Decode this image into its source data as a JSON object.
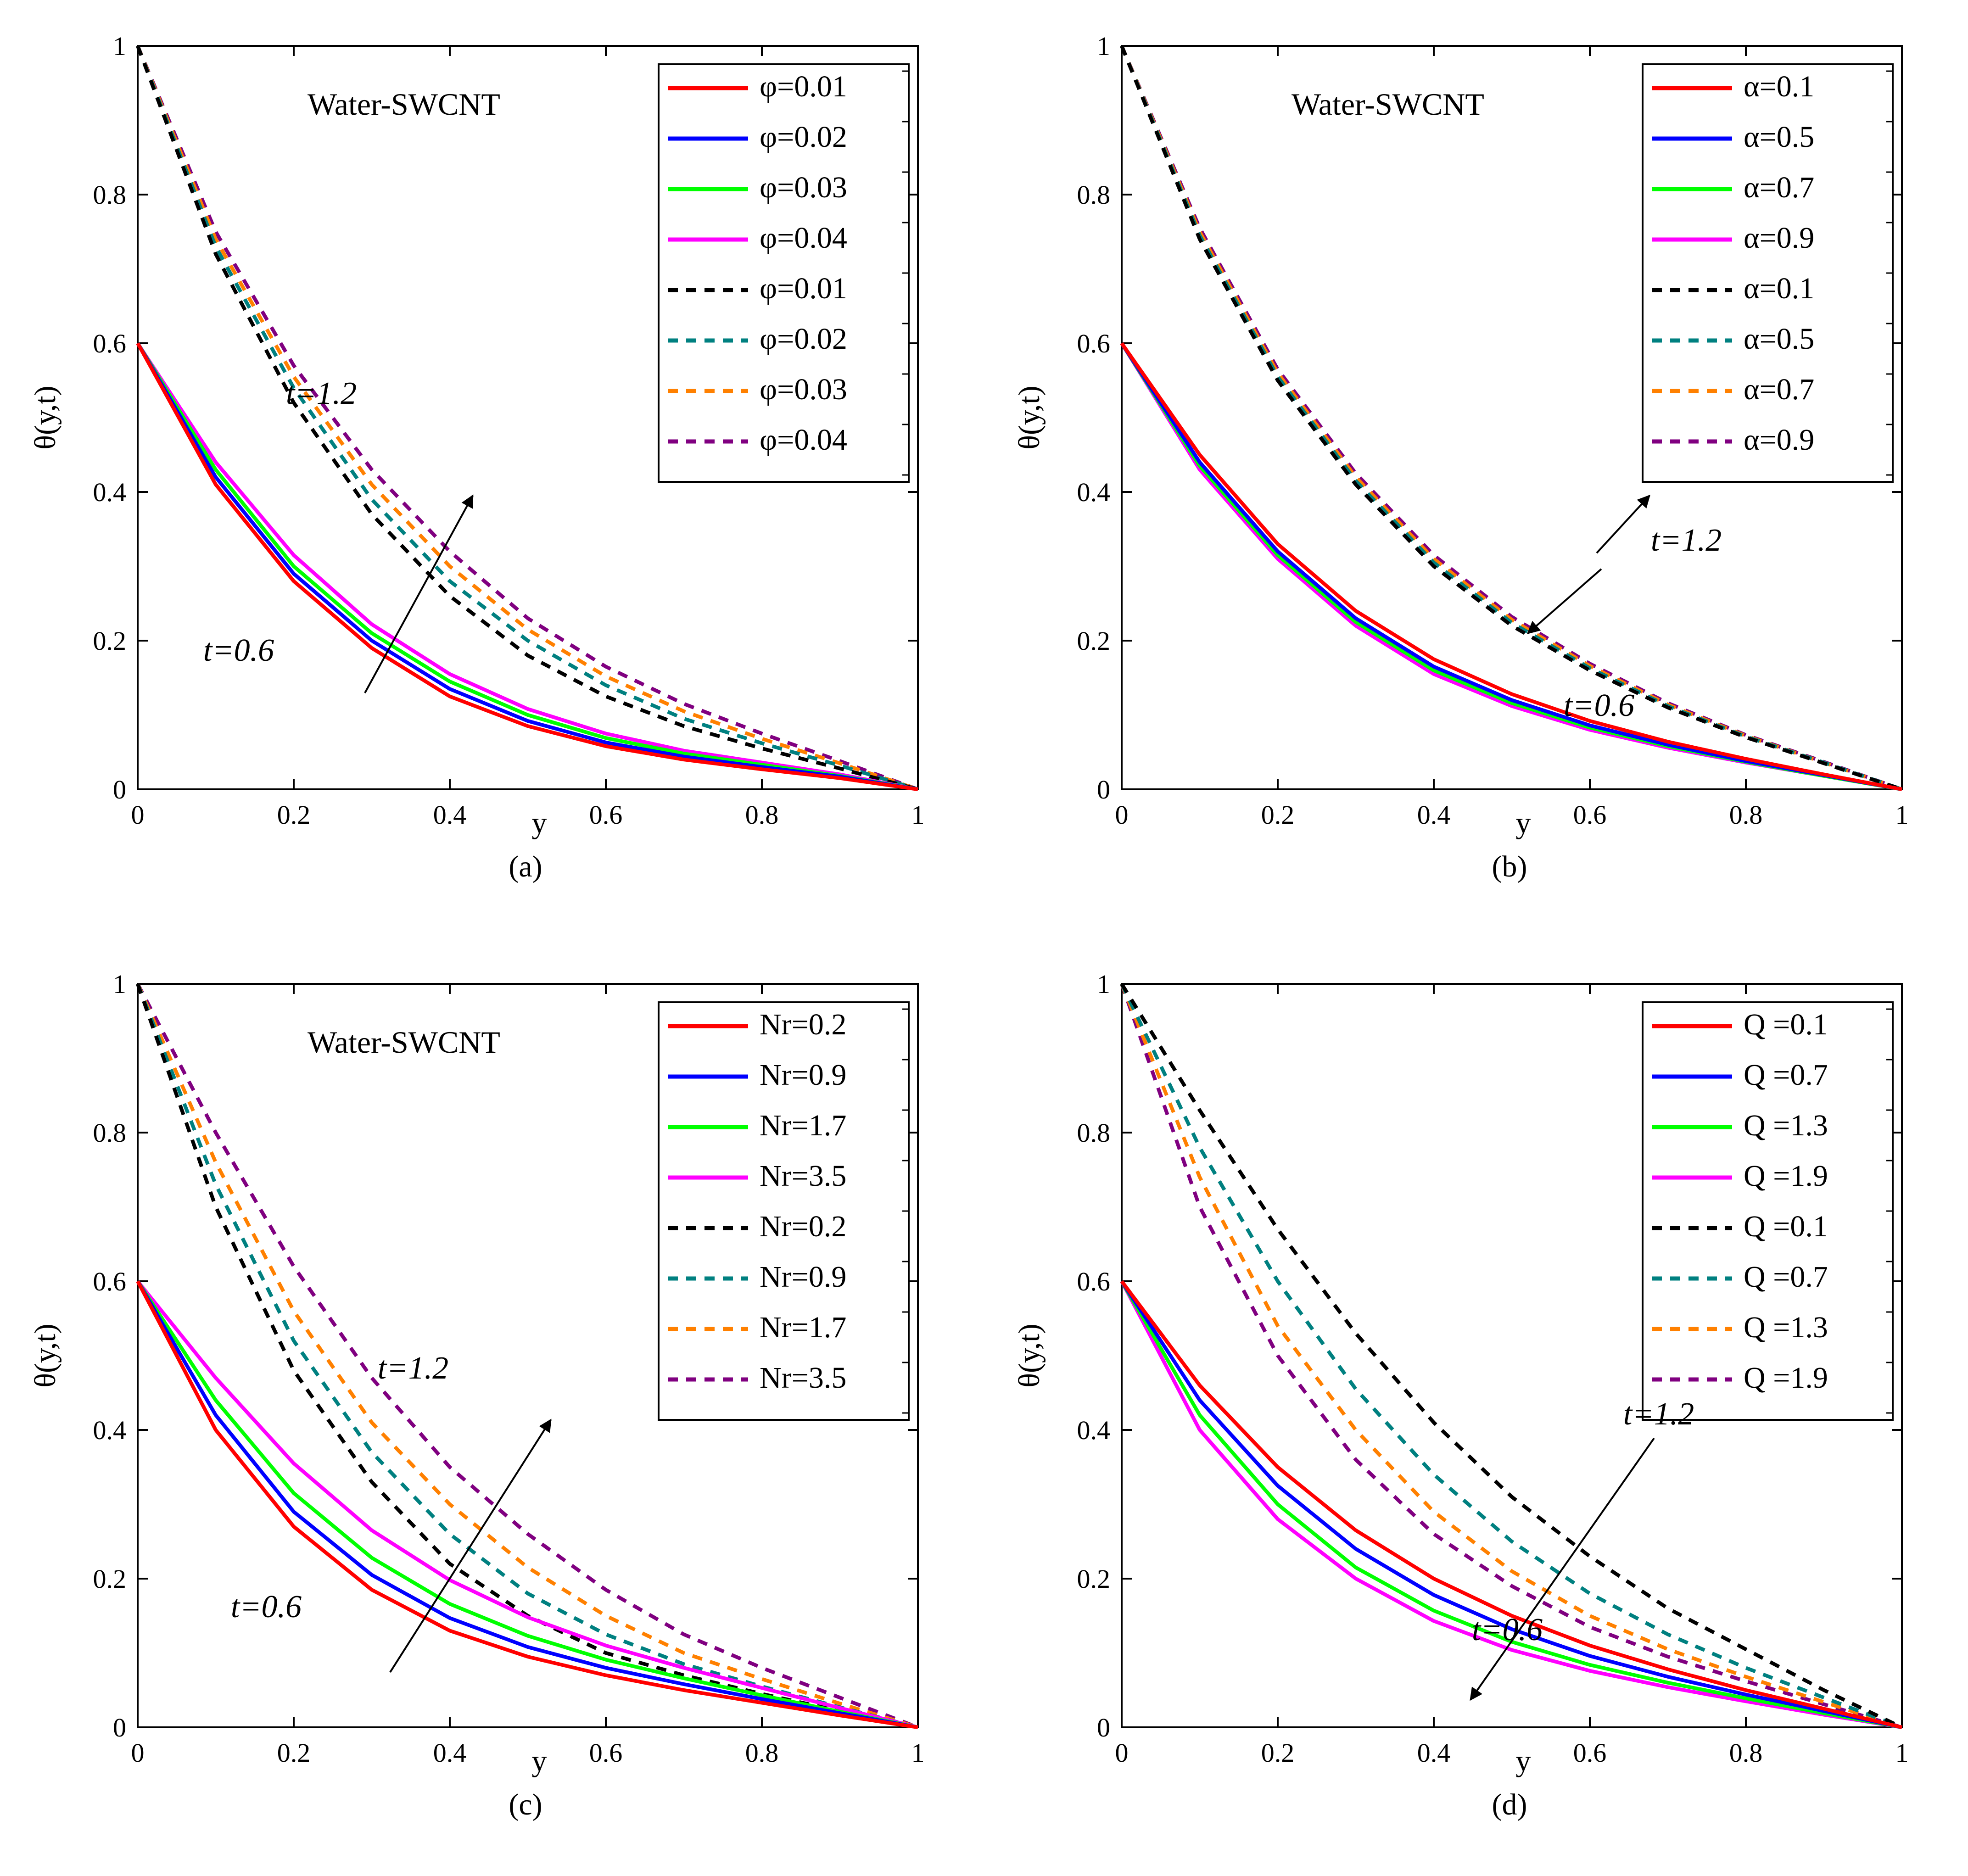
{
  "figure": {
    "panels": [
      "(a)",
      "(b)",
      "(c)",
      "(d)"
    ]
  },
  "chart_data": [
    {
      "type": "line",
      "panel_label": "(a)",
      "title": "Water-SWCNT",
      "xlabel": "y",
      "ylabel": "θ(y,t)",
      "xlim": [
        0,
        1
      ],
      "ylim": [
        0,
        1
      ],
      "xticks": [
        "0",
        "0.2",
        "0.4",
        "0.6",
        "0.8",
        "1"
      ],
      "yticks": [
        "0",
        "0.2",
        "0.4",
        "0.6",
        "0.8",
        "1"
      ],
      "legend_position": "top-right",
      "annotations": [
        "t=1.2",
        "t=0.6"
      ],
      "arrow": "up",
      "x": [
        0,
        0.1,
        0.2,
        0.3,
        0.4,
        0.5,
        0.6,
        0.7,
        0.8,
        0.9,
        1.0
      ],
      "series": [
        {
          "name": "φ=0.01",
          "style": "solid",
          "color": "#ff0000",
          "values": [
            0.6,
            0.41,
            0.28,
            0.19,
            0.125,
            0.085,
            0.058,
            0.04,
            0.027,
            0.015,
            0
          ]
        },
        {
          "name": "φ=0.02",
          "style": "solid",
          "color": "#0000ff",
          "values": [
            0.6,
            0.42,
            0.29,
            0.2,
            0.135,
            0.092,
            0.063,
            0.044,
            0.03,
            0.017,
            0
          ]
        },
        {
          "name": "φ=0.03",
          "style": "solid",
          "color": "#00ff00",
          "values": [
            0.6,
            0.43,
            0.3,
            0.21,
            0.145,
            0.1,
            0.069,
            0.048,
            0.033,
            0.018,
            0
          ]
        },
        {
          "name": "φ=0.04",
          "style": "solid",
          "color": "#ff00ff",
          "values": [
            0.6,
            0.44,
            0.315,
            0.222,
            0.155,
            0.108,
            0.075,
            0.052,
            0.036,
            0.02,
            0
          ]
        },
        {
          "name": "φ=0.01",
          "style": "dashed",
          "color": "#000000",
          "values": [
            1.0,
            0.72,
            0.52,
            0.37,
            0.26,
            0.18,
            0.125,
            0.085,
            0.055,
            0.028,
            0
          ]
        },
        {
          "name": "φ=0.02",
          "style": "dashed",
          "color": "#008080",
          "values": [
            1.0,
            0.73,
            0.54,
            0.39,
            0.28,
            0.2,
            0.14,
            0.095,
            0.062,
            0.032,
            0
          ]
        },
        {
          "name": "φ=0.03",
          "style": "dashed",
          "color": "#ff8000",
          "values": [
            1.0,
            0.74,
            0.555,
            0.41,
            0.3,
            0.215,
            0.152,
            0.105,
            0.068,
            0.035,
            0
          ]
        },
        {
          "name": "φ=0.04",
          "style": "dashed",
          "color": "#800080",
          "values": [
            1.0,
            0.75,
            0.57,
            0.43,
            0.32,
            0.23,
            0.165,
            0.115,
            0.075,
            0.038,
            0
          ]
        }
      ]
    },
    {
      "type": "line",
      "panel_label": "(b)",
      "title": "Water-SWCNT",
      "xlabel": "y",
      "ylabel": "θ(y,t)",
      "xlim": [
        0,
        1
      ],
      "ylim": [
        0,
        1
      ],
      "xticks": [
        "0",
        "0.2",
        "0.4",
        "0.6",
        "0.8",
        "1"
      ],
      "yticks": [
        "0",
        "0.2",
        "0.4",
        "0.6",
        "0.8",
        "1"
      ],
      "legend_position": "top-right",
      "annotations": [
        "t=1.2",
        "t=0.6"
      ],
      "arrow": "both",
      "x": [
        0,
        0.1,
        0.2,
        0.3,
        0.4,
        0.5,
        0.6,
        0.7,
        0.8,
        0.9,
        1.0
      ],
      "series": [
        {
          "name": "α=0.1",
          "style": "solid",
          "color": "#ff0000",
          "values": [
            0.6,
            0.45,
            0.33,
            0.24,
            0.175,
            0.128,
            0.092,
            0.064,
            0.041,
            0.02,
            0
          ]
        },
        {
          "name": "α=0.5",
          "style": "solid",
          "color": "#0000ff",
          "values": [
            0.6,
            0.44,
            0.32,
            0.23,
            0.165,
            0.12,
            0.086,
            0.06,
            0.038,
            0.019,
            0
          ]
        },
        {
          "name": "α=0.7",
          "style": "solid",
          "color": "#00ff00",
          "values": [
            0.6,
            0.435,
            0.315,
            0.225,
            0.16,
            0.116,
            0.083,
            0.058,
            0.037,
            0.018,
            0
          ]
        },
        {
          "name": "α=0.9",
          "style": "solid",
          "color": "#ff00ff",
          "values": [
            0.6,
            0.43,
            0.31,
            0.22,
            0.155,
            0.112,
            0.08,
            0.056,
            0.036,
            0.018,
            0
          ]
        },
        {
          "name": "α=0.1",
          "style": "dashed",
          "color": "#000000",
          "values": [
            1.0,
            0.74,
            0.55,
            0.41,
            0.3,
            0.22,
            0.16,
            0.11,
            0.07,
            0.035,
            0
          ]
        },
        {
          "name": "α=0.5",
          "style": "dashed",
          "color": "#008080",
          "values": [
            1.0,
            0.745,
            0.555,
            0.415,
            0.305,
            0.224,
            0.163,
            0.112,
            0.071,
            0.036,
            0
          ]
        },
        {
          "name": "α=0.7",
          "style": "dashed",
          "color": "#ff8000",
          "values": [
            1.0,
            0.75,
            0.56,
            0.42,
            0.31,
            0.228,
            0.166,
            0.114,
            0.072,
            0.036,
            0
          ]
        },
        {
          "name": "α=0.9",
          "style": "dashed",
          "color": "#800080",
          "values": [
            1.0,
            0.755,
            0.565,
            0.425,
            0.315,
            0.232,
            0.169,
            0.116,
            0.073,
            0.037,
            0
          ]
        }
      ]
    },
    {
      "type": "line",
      "panel_label": "(c)",
      "title": "Water-SWCNT",
      "xlabel": "y",
      "ylabel": "θ(y,t)",
      "xlim": [
        0,
        1
      ],
      "ylim": [
        0,
        1
      ],
      "xticks": [
        "0",
        "0.2",
        "0.4",
        "0.6",
        "0.8",
        "1"
      ],
      "yticks": [
        "0",
        "0.2",
        "0.4",
        "0.6",
        "0.8",
        "1"
      ],
      "legend_position": "top-right",
      "annotations": [
        "t=1.2",
        "t=0.6"
      ],
      "arrow": "up",
      "x": [
        0,
        0.1,
        0.2,
        0.3,
        0.4,
        0.5,
        0.6,
        0.7,
        0.8,
        0.9,
        1.0
      ],
      "series": [
        {
          "name": "Nr=0.2",
          "style": "solid",
          "color": "#ff0000",
          "values": [
            0.6,
            0.4,
            0.27,
            0.185,
            0.13,
            0.095,
            0.07,
            0.05,
            0.033,
            0.016,
            0
          ]
        },
        {
          "name": "Nr=0.9",
          "style": "solid",
          "color": "#0000ff",
          "values": [
            0.6,
            0.42,
            0.29,
            0.205,
            0.147,
            0.108,
            0.08,
            0.058,
            0.038,
            0.019,
            0
          ]
        },
        {
          "name": "Nr=1.7",
          "style": "solid",
          "color": "#00ff00",
          "values": [
            0.6,
            0.44,
            0.315,
            0.228,
            0.166,
            0.123,
            0.091,
            0.066,
            0.043,
            0.021,
            0
          ]
        },
        {
          "name": "Nr=3.5",
          "style": "solid",
          "color": "#ff00ff",
          "values": [
            0.6,
            0.47,
            0.355,
            0.265,
            0.198,
            0.148,
            0.11,
            0.08,
            0.053,
            0.026,
            0
          ]
        },
        {
          "name": "Nr=0.2",
          "style": "dashed",
          "color": "#000000",
          "values": [
            1.0,
            0.7,
            0.48,
            0.33,
            0.22,
            0.15,
            0.1,
            0.07,
            0.045,
            0.022,
            0
          ]
        },
        {
          "name": "Nr=0.9",
          "style": "dashed",
          "color": "#008080",
          "values": [
            1.0,
            0.73,
            0.52,
            0.37,
            0.26,
            0.18,
            0.125,
            0.085,
            0.055,
            0.027,
            0
          ]
        },
        {
          "name": "Nr=1.7",
          "style": "dashed",
          "color": "#ff8000",
          "values": [
            1.0,
            0.76,
            0.56,
            0.41,
            0.3,
            0.215,
            0.15,
            0.1,
            0.065,
            0.032,
            0
          ]
        },
        {
          "name": "Nr=3.5",
          "style": "dashed",
          "color": "#800080",
          "values": [
            1.0,
            0.8,
            0.62,
            0.47,
            0.35,
            0.26,
            0.185,
            0.125,
            0.08,
            0.04,
            0
          ]
        }
      ]
    },
    {
      "type": "line",
      "panel_label": "(d)",
      "title": "",
      "xlabel": "y",
      "ylabel": "θ(y,t)",
      "xlim": [
        0,
        1
      ],
      "ylim": [
        0,
        1
      ],
      "xticks": [
        "0",
        "0.2",
        "0.4",
        "0.6",
        "0.8",
        "1"
      ],
      "yticks": [
        "0",
        "0.2",
        "0.4",
        "0.6",
        "0.8",
        "1"
      ],
      "legend_position": "top-right",
      "annotations": [
        "t=1.2",
        "t=0.6"
      ],
      "arrow": "down",
      "x": [
        0,
        0.1,
        0.2,
        0.3,
        0.4,
        0.5,
        0.6,
        0.7,
        0.8,
        0.9,
        1.0
      ],
      "series": [
        {
          "name": "Q =0.1",
          "style": "solid",
          "color": "#ff0000",
          "values": [
            0.6,
            0.46,
            0.35,
            0.265,
            0.2,
            0.15,
            0.11,
            0.078,
            0.05,
            0.025,
            0
          ]
        },
        {
          "name": "Q =0.7",
          "style": "solid",
          "color": "#0000ff",
          "values": [
            0.6,
            0.44,
            0.325,
            0.24,
            0.178,
            0.132,
            0.096,
            0.068,
            0.044,
            0.022,
            0
          ]
        },
        {
          "name": "Q =1.3",
          "style": "solid",
          "color": "#00ff00",
          "values": [
            0.6,
            0.42,
            0.3,
            0.215,
            0.157,
            0.115,
            0.084,
            0.06,
            0.039,
            0.019,
            0
          ]
        },
        {
          "name": "Q =1.9",
          "style": "solid",
          "color": "#ff00ff",
          "values": [
            0.6,
            0.4,
            0.28,
            0.2,
            0.143,
            0.104,
            0.076,
            0.054,
            0.035,
            0.017,
            0
          ]
        },
        {
          "name": "Q =0.1",
          "style": "dashed",
          "color": "#000000",
          "values": [
            1.0,
            0.83,
            0.67,
            0.53,
            0.41,
            0.31,
            0.23,
            0.16,
            0.105,
            0.05,
            0
          ]
        },
        {
          "name": "Q =0.7",
          "style": "dashed",
          "color": "#008080",
          "values": [
            1.0,
            0.78,
            0.6,
            0.455,
            0.34,
            0.25,
            0.18,
            0.125,
            0.08,
            0.04,
            0
          ]
        },
        {
          "name": "Q =1.3",
          "style": "dashed",
          "color": "#ff8000",
          "values": [
            1.0,
            0.74,
            0.54,
            0.4,
            0.29,
            0.21,
            0.15,
            0.105,
            0.068,
            0.034,
            0
          ]
        },
        {
          "name": "Q =1.9",
          "style": "dashed",
          "color": "#800080",
          "values": [
            1.0,
            0.7,
            0.5,
            0.36,
            0.26,
            0.19,
            0.135,
            0.095,
            0.062,
            0.031,
            0
          ]
        }
      ]
    }
  ]
}
